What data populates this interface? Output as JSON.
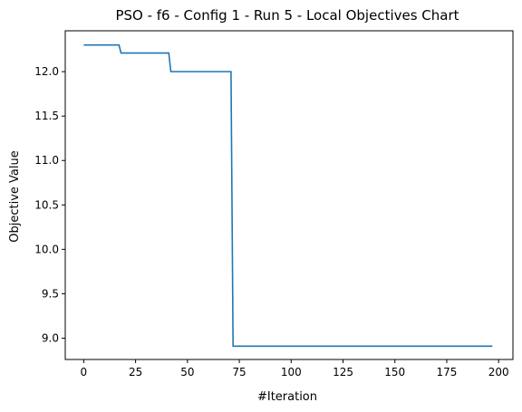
{
  "chart_data": {
    "type": "line",
    "title": "PSO - f6 - Config 1 - Run 5 - Local Objectives Chart",
    "xlabel": "#Iteration",
    "ylabel": "Objective Value",
    "xlim": [
      -8.9,
      206.9
    ],
    "ylim": [
      8.76,
      12.46
    ],
    "xticks": [
      0,
      25,
      50,
      75,
      100,
      125,
      150,
      175,
      200
    ],
    "xtick_labels": [
      "0",
      "25",
      "50",
      "75",
      "100",
      "125",
      "150",
      "175",
      "200"
    ],
    "yticks": [
      9.0,
      9.5,
      10.0,
      10.5,
      11.0,
      11.5,
      12.0
    ],
    "ytick_labels": [
      "9.0",
      "9.5",
      "10.0",
      "10.5",
      "11.0",
      "11.5",
      "12.0"
    ],
    "grid": false,
    "series": [
      {
        "color": "#1f77b4",
        "x": [
          0,
          17,
          18,
          41,
          42,
          71,
          72,
          197
        ],
        "y": [
          12.3,
          12.3,
          12.21,
          12.21,
          12.0,
          12.0,
          8.91,
          8.91
        ]
      }
    ]
  }
}
